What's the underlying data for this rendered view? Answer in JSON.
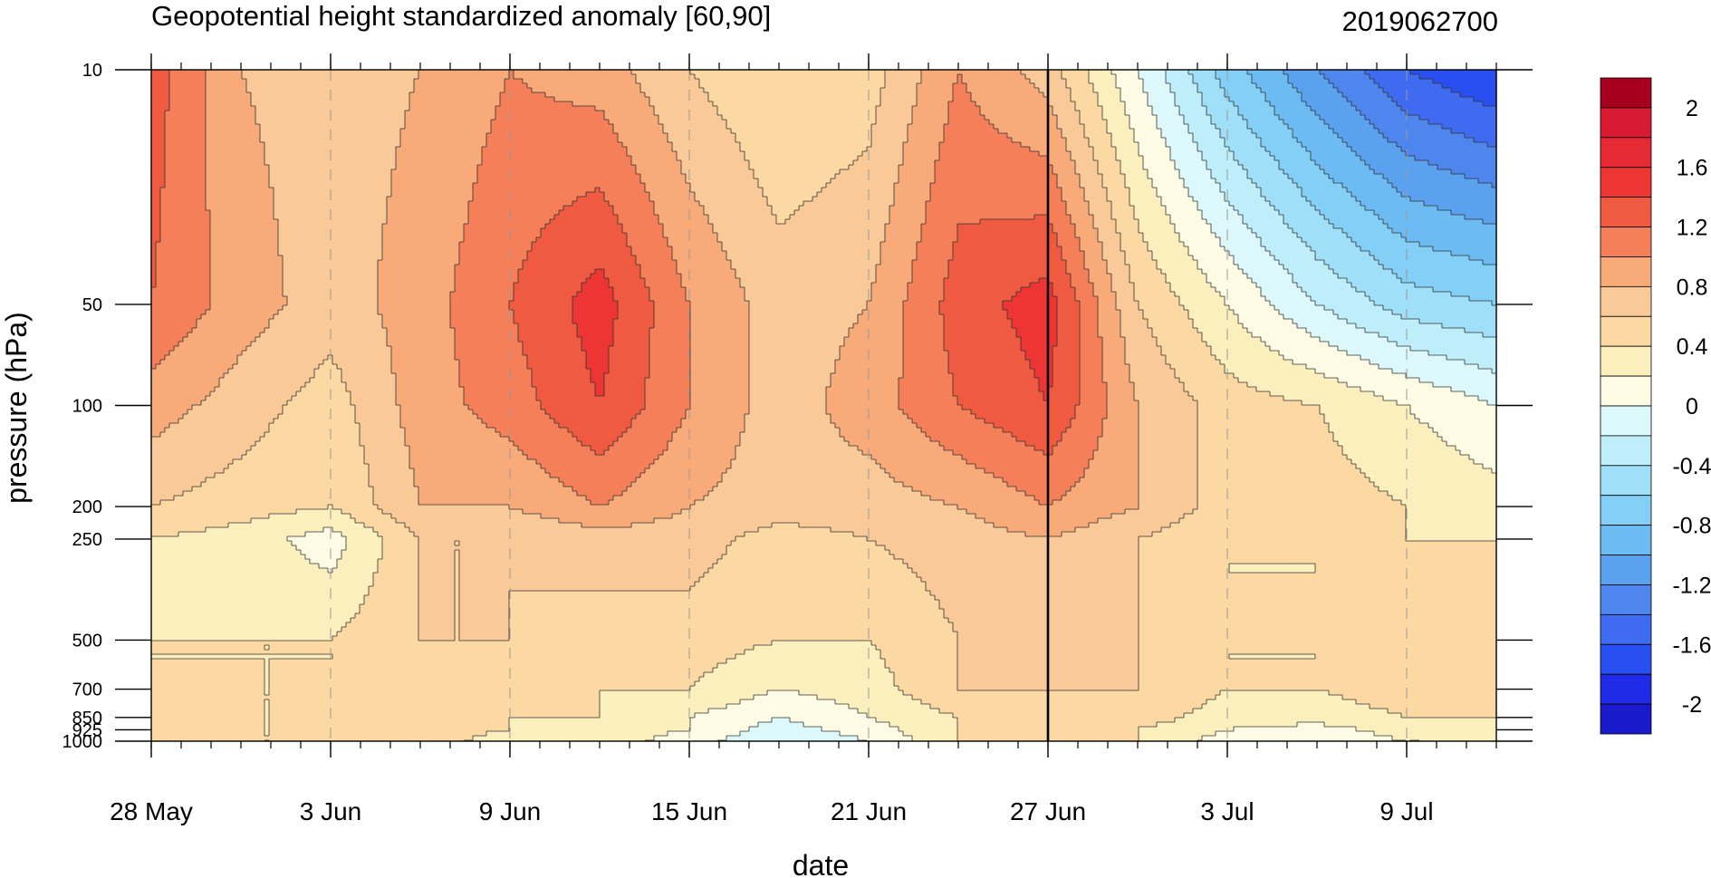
{
  "chart_data": {
    "type": "heatmap",
    "title": "Geopotential height standardized anomaly [60,90]",
    "title_right": "2019062700",
    "xlabel": "date",
    "ylabel": "pressure (hPa)",
    "x_tick_labels": [
      "28 May",
      "3 Jun",
      "9 Jun",
      "15 Jun",
      "21 Jun",
      "27 Jun",
      "3 Jul",
      "9 Jul"
    ],
    "x_tick_dates": [
      "2019-05-28",
      "2019-06-03",
      "2019-06-09",
      "2019-06-15",
      "2019-06-21",
      "2019-06-27",
      "2019-07-03",
      "2019-07-09"
    ],
    "x_range": [
      "2019-05-28",
      "2019-07-12"
    ],
    "y_tick_labels": [
      "10",
      "50",
      "100",
      "200",
      "250",
      "500",
      "700",
      "850",
      "925",
      "1000"
    ],
    "y_tick_values": [
      10,
      50,
      100,
      200,
      250,
      500,
      700,
      850,
      925,
      1000
    ],
    "y_range": [
      1000,
      10
    ],
    "y_scale": "log",
    "minor_x_ticks": "daily",
    "vertical_marker_date": "2019-06-27",
    "colorbar": {
      "levels": [
        -2.2,
        -2.0,
        -1.8,
        -1.6,
        -1.4,
        -1.2,
        -1.0,
        -0.8,
        -0.6,
        -0.4,
        -0.2,
        0,
        0.2,
        0.4,
        0.6,
        0.8,
        1.0,
        1.2,
        1.4,
        1.6,
        1.8,
        2.0,
        2.2
      ],
      "tick_labels": [
        "2",
        "1.6",
        "1.2",
        "0.8",
        "0.4",
        "0",
        "-0.4",
        "-0.8",
        "-1.2",
        "-1.6",
        "-2"
      ],
      "colors": [
        "#1a1acc",
        "#1f2be6",
        "#2a4ff0",
        "#3f6bf0",
        "#4e86ee",
        "#5aa2f0",
        "#6cbbf3",
        "#83cff6",
        "#9fdff8",
        "#bdeefa",
        "#dcf8fb",
        "#fefbe4",
        "#fcefbe",
        "#fcd9a3",
        "#f9c998",
        "#f8ab78",
        "#f47f58",
        "#f05a40",
        "#ed3634",
        "#e62a35",
        "#d81b32",
        "#a6001e"
      ]
    },
    "days_since_start": [
      0,
      3,
      6,
      9,
      12,
      15,
      18,
      21,
      24,
      27,
      30,
      33,
      36,
      39,
      42,
      45
    ],
    "pressure_levels": [
      10,
      50,
      100,
      200,
      250,
      500,
      700,
      850,
      925,
      1000
    ],
    "values": [
      [
        1.3,
        0.8,
        0.7,
        0.8,
        1.0,
        0.9,
        0.6,
        0.4,
        0.5,
        1.0,
        0.7,
        0.0,
        -0.7,
        -1.2,
        -1.6,
        -1.8
      ],
      [
        1.2,
        0.9,
        0.7,
        0.9,
        1.2,
        1.5,
        1.0,
        0.7,
        0.8,
        1.3,
        1.5,
        0.6,
        0.2,
        -0.2,
        -0.5,
        -0.6
      ],
      [
        0.9,
        0.7,
        0.5,
        0.9,
        1.1,
        1.4,
        1.0,
        0.7,
        0.9,
        1.2,
        1.4,
        0.8,
        0.5,
        0.4,
        0.2,
        0.0
      ],
      [
        0.6,
        0.5,
        0.4,
        0.8,
        0.8,
        1.0,
        0.8,
        0.7,
        0.7,
        0.8,
        1.0,
        0.8,
        0.5,
        0.5,
        0.4,
        0.3
      ],
      [
        0.4,
        0.3,
        0.1,
        0.6,
        0.6,
        0.7,
        0.7,
        0.5,
        0.6,
        0.7,
        0.8,
        0.6,
        0.4,
        0.4,
        0.4,
        0.4
      ],
      [
        0.4,
        0.4,
        0.4,
        0.6,
        0.6,
        0.5,
        0.5,
        0.4,
        0.4,
        0.6,
        0.7,
        0.6,
        0.4,
        0.4,
        0.6,
        0.6
      ],
      [
        0.4,
        0.4,
        0.4,
        0.6,
        0.5,
        0.4,
        0.4,
        0.2,
        0.3,
        0.6,
        0.6,
        0.6,
        0.4,
        0.4,
        0.5,
        0.6
      ],
      [
        0.4,
        0.4,
        0.4,
        0.5,
        0.4,
        0.4,
        0.2,
        0.0,
        0.2,
        0.4,
        0.6,
        0.5,
        0.3,
        0.3,
        0.4,
        0.4
      ],
      [
        0.4,
        0.4,
        0.4,
        0.5,
        0.4,
        0.3,
        0.2,
        -0.1,
        0.1,
        0.4,
        0.6,
        0.4,
        0.2,
        0.1,
        0.3,
        0.3
      ],
      [
        0.4,
        0.4,
        0.4,
        0.5,
        0.3,
        0.3,
        0.1,
        -0.2,
        0.0,
        0.4,
        0.6,
        0.4,
        0.1,
        0.0,
        0.2,
        0.2
      ]
    ]
  }
}
